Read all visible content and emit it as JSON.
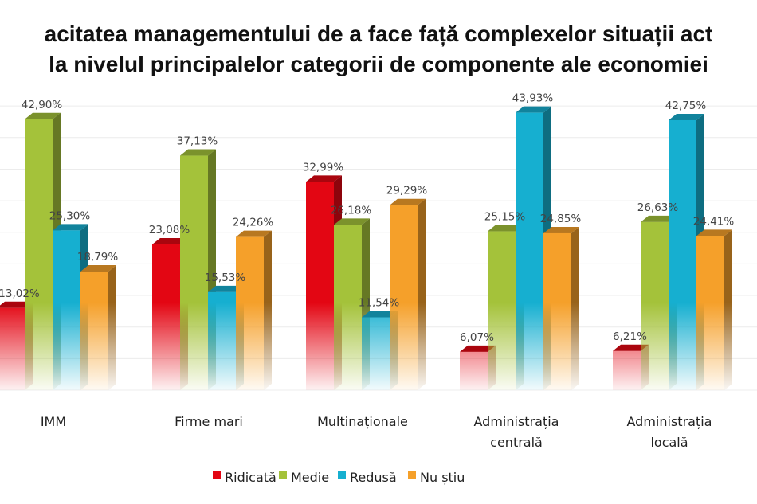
{
  "chart_data": {
    "type": "bar",
    "title_lines": [
      "acitatea managementului de a face față complexelor situații act",
      "la nivelul principalelor categorii de componente ale economiei"
    ],
    "categories": [
      [
        "IMM"
      ],
      [
        "Firme mari"
      ],
      [
        "Multinaționale"
      ],
      [
        "Administrația",
        "centrală"
      ],
      [
        "Administrația",
        "locală"
      ]
    ],
    "series": [
      {
        "name": "Ridicată",
        "color": "#e30613",
        "values": [
          13.02,
          23.08,
          32.99,
          6.07,
          6.21
        ],
        "labels": [
          "13,02%",
          "23,08%",
          "32,99%",
          "6,07%",
          "6,21%"
        ]
      },
      {
        "name": "Medie",
        "color": "#a4c23a",
        "values": [
          42.9,
          37.13,
          26.18,
          25.15,
          26.63
        ],
        "labels": [
          "42,90%",
          "37,13%",
          "26,18%",
          "25,15%",
          "26,63%"
        ]
      },
      {
        "name": "Redusă",
        "color": "#16afd0",
        "values": [
          25.3,
          15.53,
          11.54,
          43.93,
          42.75
        ],
        "labels": [
          "25,30%",
          "15,53%",
          "11,54%",
          "43,93%",
          "42,75%"
        ]
      },
      {
        "name": "Nu știu",
        "color": "#f5a02a",
        "values": [
          18.79,
          24.26,
          29.29,
          24.85,
          24.41
        ],
        "labels": [
          "18,79%",
          "24,26%",
          "29,29%",
          "24,85%",
          "24,41%"
        ]
      }
    ],
    "ylim": [
      0,
      45
    ],
    "grid": true,
    "legend": "bottom",
    "style": "3d-column-gradient"
  }
}
